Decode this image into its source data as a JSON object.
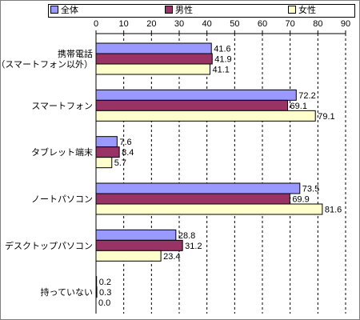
{
  "chart_data": {
    "type": "bar",
    "orientation": "horizontal",
    "categories": [
      "携帯電話\n（スマートフォン以外）",
      "スマートフォン",
      "タブレット端末",
      "ノートパソコン",
      "デスクトップパソコン",
      "持っていない"
    ],
    "series": [
      {
        "name": "全体",
        "values": [
          41.6,
          72.2,
          7.6,
          73.5,
          28.8,
          0.2
        ],
        "color": "#9999ff"
      },
      {
        "name": "男性",
        "values": [
          41.9,
          69.1,
          8.4,
          69.9,
          31.2,
          0.3
        ],
        "color": "#993366"
      },
      {
        "name": "女性",
        "values": [
          41.1,
          79.1,
          5.7,
          81.6,
          23.4,
          0.0
        ],
        "color": "#ffffcc"
      }
    ],
    "value_labels": [
      [
        "41.6",
        "72.2",
        "7.6",
        "73.5",
        "28.8",
        "0.2"
      ],
      [
        "41.9",
        "69.1",
        "8.4",
        "69.9",
        "31.2",
        "0.3"
      ],
      [
        "41.1",
        "79.1",
        "5.7",
        "81.6",
        "23.4",
        "0.0"
      ]
    ],
    "ticks": [
      0,
      10,
      20,
      30,
      40,
      50,
      60,
      70,
      80,
      90
    ],
    "xlim": [
      0,
      90
    ],
    "legend_position": "top",
    "grid": "vertical dashed"
  }
}
